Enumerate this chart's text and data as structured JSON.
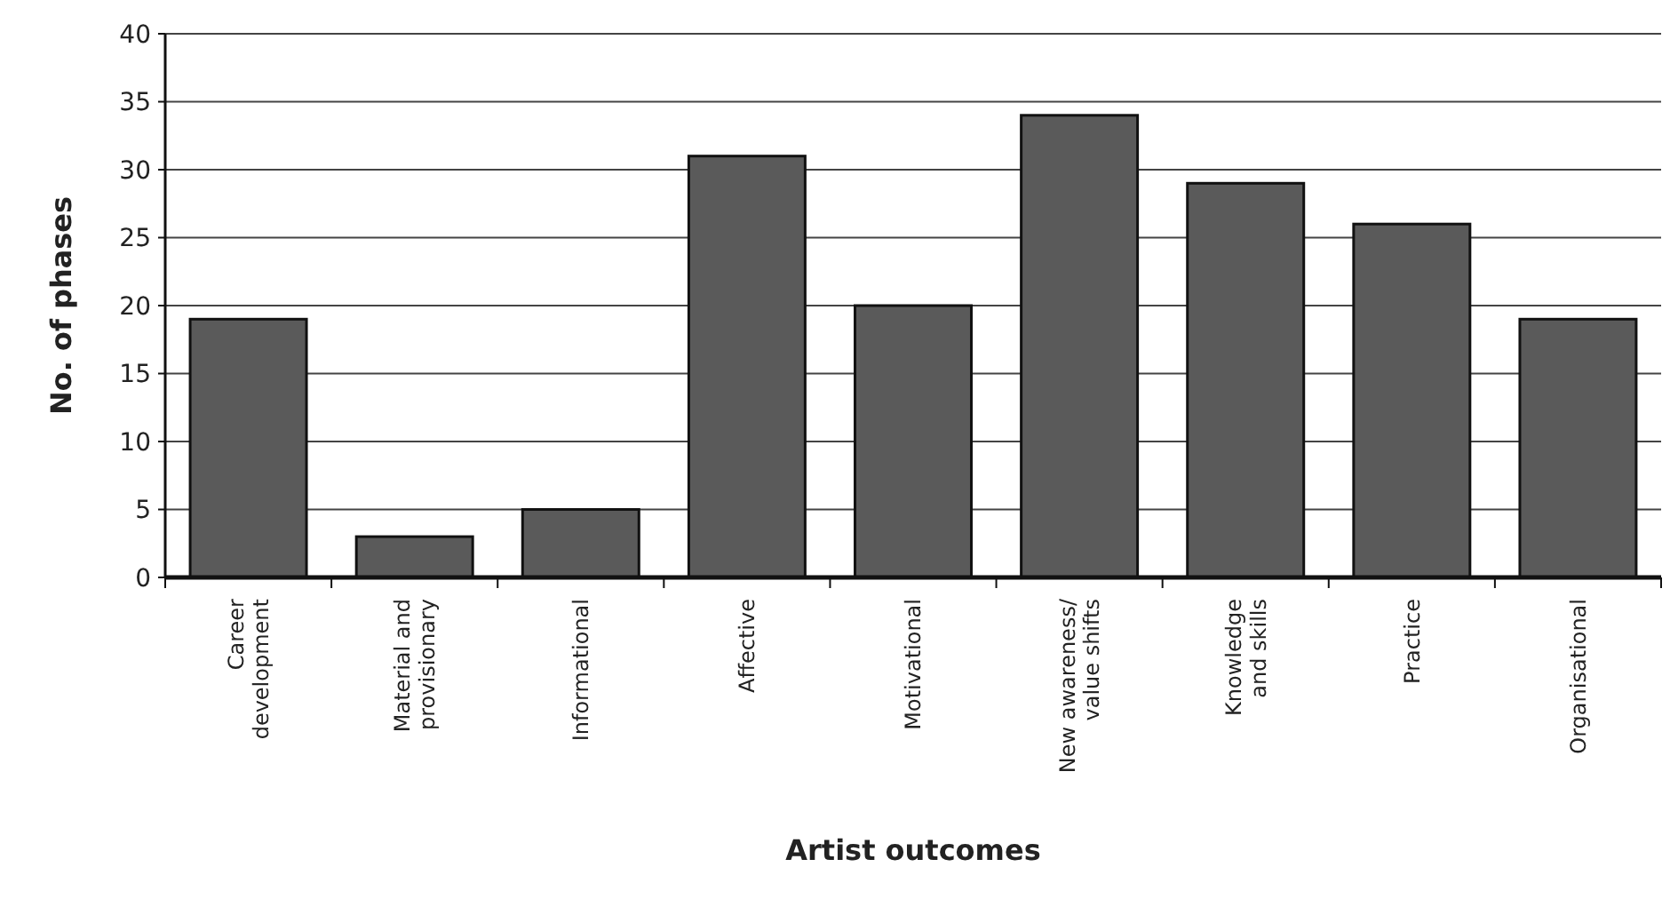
{
  "chart_data": {
    "type": "bar",
    "xlabel": "Artist outcomes",
    "ylabel": "No. of phases",
    "categories": [
      "Career development",
      "Material and provisionary",
      "Informational",
      "Affective",
      "Motivational",
      "New awareness/ value shifts",
      "Knowledge and skills",
      "Practice",
      "Organisational"
    ],
    "values": [
      19,
      3,
      5,
      31,
      20,
      34,
      29,
      26,
      19
    ],
    "color": "#5a5a5a",
    "ylim": [
      0,
      40
    ],
    "yticks": [
      0,
      5,
      10,
      15,
      20,
      25,
      30,
      35,
      40
    ],
    "grid": "y"
  }
}
